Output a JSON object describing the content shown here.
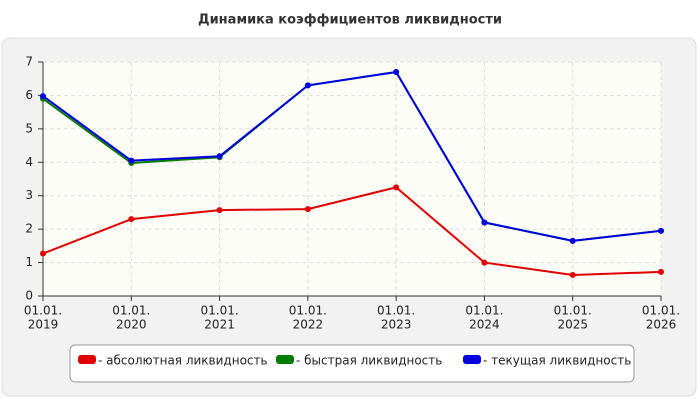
{
  "chart_data": {
    "type": "line",
    "title": "Динамика коэффициентов ликвидности",
    "categories": [
      [
        "01.01.",
        "2019"
      ],
      [
        "01.01.",
        "2020"
      ],
      [
        "01.01.",
        "2021"
      ],
      [
        "01.01.",
        "2022"
      ],
      [
        "01.01.",
        "2023"
      ],
      [
        "01.01.",
        "2024"
      ],
      [
        "01.01.",
        "2025"
      ],
      [
        "01.01.",
        "2026"
      ]
    ],
    "series": [
      {
        "name": "- абсолютная ликвидность",
        "color": "#e00000",
        "values": [
          1.27,
          2.3,
          2.57,
          2.6,
          3.25,
          1.0,
          0.63,
          0.72
        ]
      },
      {
        "name": "- быстрая ликвидность",
        "color": "#007a00",
        "values": [
          5.9,
          3.98,
          4.15,
          6.3,
          6.7,
          2.2,
          1.65,
          1.95
        ]
      },
      {
        "name": "- текущая ликвидность",
        "color": "#0000e0",
        "values": [
          5.98,
          4.05,
          4.18,
          6.3,
          6.7,
          2.2,
          1.65,
          1.95
        ]
      }
    ],
    "ylim": [
      0,
      7
    ],
    "yticks": [
      0,
      1,
      2,
      3,
      4,
      5,
      6,
      7
    ],
    "grid": true
  }
}
